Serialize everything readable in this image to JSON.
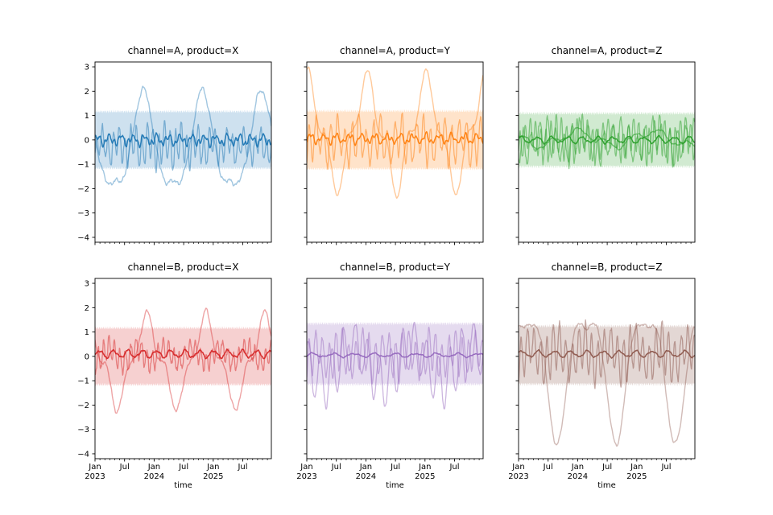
{
  "figure": {
    "background": "#ffffff"
  },
  "chart_data": {
    "type": "line",
    "layout": {
      "rows": 2,
      "cols": 3,
      "grid": false,
      "legend": "none"
    },
    "x_axis": {
      "label": "time",
      "start": "2023-01",
      "end": "2025-12",
      "total_months": 35.8,
      "major_ticks": [
        {
          "month": 0,
          "lines": [
            "Jan",
            "2023"
          ]
        },
        {
          "month": 6,
          "lines": [
            "Jul"
          ]
        },
        {
          "month": 12,
          "lines": [
            "Jan",
            "2024"
          ]
        },
        {
          "month": 18,
          "lines": [
            "Jul"
          ]
        },
        {
          "month": 24,
          "lines": [
            "Jan",
            "2025"
          ]
        },
        {
          "month": 30,
          "lines": [
            "Jul"
          ]
        }
      ],
      "minor_tick_every_months": 1
    },
    "y_axis": {
      "tick_labels": [
        "3",
        "2",
        "1",
        "0",
        "−1",
        "−2",
        "−3",
        "−4"
      ],
      "tick_values": [
        3,
        2,
        1,
        0,
        -1,
        -2,
        -3,
        -4
      ],
      "lim": [
        -4.2,
        3.2
      ]
    },
    "subplots": [
      {
        "title": "channel=A, product=X",
        "row": 0,
        "col": 0,
        "color": "#1f77b4",
        "band": {
          "center": 0,
          "half_width": 1.1,
          "edge_noise": 0.18,
          "edge_noise_freq": 2.6,
          "alpha": 0.22,
          "seed": 11
        },
        "series": [
          {
            "name": "seasonal-line",
            "offset": -0.3,
            "components": [
              {
                "amp": 1.9,
                "period": 12,
                "peak": 9.8
              },
              {
                "amp": 0.45,
                "period": 6,
                "peak": 9.8
              }
            ],
            "noise": 0.2,
            "noise_freq": 0.35,
            "alpha": 0.42,
            "width": 1.4,
            "seed": 1
          },
          {
            "name": "noisy-line",
            "offset": -0.25,
            "components": [
              {
                "amp": 0.6,
                "period": 1.15,
                "peak": 0.3
              },
              {
                "amp": 0.3,
                "period": 3.2,
                "peak": 1.4
              }
            ],
            "noise": 0.28,
            "noise_freq": 0.9,
            "alpha": 0.5,
            "width": 1.3,
            "seed": 2
          },
          {
            "name": "mean-line",
            "offset": 0.0,
            "components": [
              {
                "amp": 0.16,
                "period": 2.4,
                "peak": 0.5
              },
              {
                "amp": 0.1,
                "period": 0.95,
                "peak": 0.1
              }
            ],
            "noise": 0.1,
            "noise_freq": 0.7,
            "alpha": 0.95,
            "width": 1.5,
            "seed": 3
          }
        ]
      },
      {
        "title": "channel=A, product=Y",
        "row": 0,
        "col": 1,
        "color": "#ff7f0e",
        "band": {
          "center": 0,
          "half_width": 1.12,
          "edge_noise": 0.18,
          "edge_noise_freq": 2.6,
          "alpha": 0.22,
          "seed": 12
        },
        "series": [
          {
            "name": "seasonal-line",
            "offset": 0.3,
            "components": [
              {
                "amp": 2.0,
                "period": 12,
                "peak": 0.2
              },
              {
                "amp": 0.6,
                "period": 4,
                "peak": 0.3
              }
            ],
            "noise": 0.15,
            "noise_freq": 0.3,
            "alpha": 0.42,
            "width": 1.4,
            "seed": 4
          },
          {
            "name": "noisy-line",
            "offset": -0.05,
            "components": [
              {
                "amp": 0.75,
                "period": 1.45,
                "peak": 0.5
              },
              {
                "amp": 0.3,
                "period": 4.2,
                "peak": 2.1
              }
            ],
            "noise": 0.3,
            "noise_freq": 0.9,
            "alpha": 0.5,
            "width": 1.3,
            "seed": 5
          },
          {
            "name": "mean-line",
            "offset": 0.05,
            "components": [
              {
                "amp": 0.15,
                "period": 2.6,
                "peak": 0.8
              },
              {
                "amp": 0.08,
                "period": 1.0,
                "peak": 0.3
              }
            ],
            "noise": 0.08,
            "noise_freq": 0.6,
            "alpha": 0.95,
            "width": 1.5,
            "seed": 6
          }
        ]
      },
      {
        "title": "channel=A, product=Z",
        "row": 0,
        "col": 2,
        "color": "#2ca02c",
        "band": {
          "center": 0,
          "half_width": 1.02,
          "edge_noise": 0.2,
          "edge_noise_freq": 2.6,
          "alpha": 0.22,
          "seed": 13
        },
        "series": [
          {
            "name": "noisy-line",
            "offset": 0.0,
            "components": [
              {
                "amp": 0.68,
                "period": 1.05,
                "peak": 0.3
              },
              {
                "amp": 0.3,
                "period": 5.2,
                "peak": 2.6
              }
            ],
            "noise": 0.26,
            "noise_freq": 0.9,
            "alpha": 0.5,
            "width": 1.3,
            "seed": 7
          },
          {
            "name": "noisy-line-2",
            "offset": -0.05,
            "components": [
              {
                "amp": 0.6,
                "period": 1.65,
                "peak": 0.95
              },
              {
                "amp": 0.3,
                "period": 7.5,
                "peak": 5.2
              }
            ],
            "noise": 0.26,
            "noise_freq": 0.8,
            "alpha": 0.5,
            "width": 1.3,
            "seed": 8
          },
          {
            "name": "slow-line",
            "offset": 0.05,
            "components": [
              {
                "amp": 0.28,
                "period": 15,
                "peak": 27
              },
              {
                "amp": 0.15,
                "period": 5.5,
                "peak": 1.2
              }
            ],
            "noise": 0.07,
            "noise_freq": 0.4,
            "alpha": 0.6,
            "width": 1.4,
            "seed": 9
          },
          {
            "name": "mean-line",
            "offset": 0.0,
            "components": [
              {
                "amp": 0.12,
                "period": 3.1,
                "peak": 0.6
              }
            ],
            "noise": 0.07,
            "noise_freq": 0.5,
            "alpha": 0.95,
            "width": 1.5,
            "seed": 10
          }
        ]
      },
      {
        "title": "channel=B, product=X",
        "row": 1,
        "col": 0,
        "color": "#d62728",
        "band": {
          "center": 0,
          "half_width": 1.1,
          "edge_noise": 0.18,
          "edge_noise_freq": 2.6,
          "alpha": 0.22,
          "seed": 14
        },
        "series": [
          {
            "name": "seasonal-line",
            "offset": -0.2,
            "components": [
              {
                "amp": 1.6,
                "period": 12,
                "peak": 10.5
              },
              {
                "amp": 0.45,
                "period": 4,
                "peak": 2.5
              }
            ],
            "noise": 0.16,
            "noise_freq": 0.35,
            "alpha": 0.42,
            "width": 1.4,
            "seed": 15
          },
          {
            "name": "noisy-line",
            "offset": 0.05,
            "components": [
              {
                "amp": 0.5,
                "period": 1.1,
                "peak": 0.6
              },
              {
                "amp": 0.3,
                "period": 5.6,
                "peak": 2.9
              }
            ],
            "noise": 0.3,
            "noise_freq": 0.9,
            "alpha": 0.5,
            "width": 1.3,
            "seed": 16
          },
          {
            "name": "mean-line",
            "offset": 0.1,
            "components": [
              {
                "amp": 0.14,
                "period": 2.9,
                "peak": 0.9
              }
            ],
            "noise": 0.08,
            "noise_freq": 0.6,
            "alpha": 0.95,
            "width": 1.5,
            "seed": 17
          }
        ]
      },
      {
        "title": "channel=B, product=Y",
        "row": 1,
        "col": 1,
        "color": "#9467bd",
        "band": {
          "center": 0.1,
          "half_width": 1.18,
          "edge_noise": 0.2,
          "edge_noise_freq": 2.6,
          "alpha": 0.24,
          "seed": 18
        },
        "series": [
          {
            "name": "seasonal-line",
            "offset": -0.3,
            "components": [
              {
                "amp": 0.75,
                "period": 12,
                "peak": 9.4
              },
              {
                "amp": 1.0,
                "period": 2.4,
                "peak": 0.3
              }
            ],
            "noise": 0.2,
            "noise_freq": 0.5,
            "alpha": 0.48,
            "width": 1.3,
            "seed": 19
          },
          {
            "name": "noisy-line",
            "offset": 0.05,
            "components": [
              {
                "amp": 0.75,
                "period": 1.35,
                "peak": 0.5
              },
              {
                "amp": 0.3,
                "period": 4.6,
                "peak": 2.2
              }
            ],
            "noise": 0.26,
            "noise_freq": 0.9,
            "alpha": 0.45,
            "width": 1.3,
            "seed": 20
          },
          {
            "name": "mean-line",
            "offset": 0.05,
            "components": [
              {
                "amp": 0.07,
                "period": 4.2,
                "peak": 1.2
              }
            ],
            "noise": 0.05,
            "noise_freq": 0.4,
            "alpha": 0.95,
            "width": 1.5,
            "seed": 21
          }
        ]
      },
      {
        "title": "channel=B, product=Z",
        "row": 1,
        "col": 2,
        "color": "#8c564b",
        "band": {
          "center": 0.05,
          "half_width": 1.12,
          "edge_noise": 0.2,
          "edge_noise_freq": 2.6,
          "alpha": 0.24,
          "seed": 22
        },
        "series": [
          {
            "name": "seasonal-line",
            "offset": -0.4,
            "components": [
              {
                "amp": 2.4,
                "period": 12,
                "peak": 1.8
              },
              {
                "amp": 0.8,
                "period": 6,
                "peak": 4.8
              }
            ],
            "noise": 0.15,
            "noise_freq": 0.3,
            "alpha": 0.4,
            "width": 1.4,
            "seed": 23
          },
          {
            "name": "noisy-line",
            "offset": 0.1,
            "components": [
              {
                "amp": 0.85,
                "period": 1.3,
                "peak": 0.55
              },
              {
                "amp": 0.4,
                "period": 5.3,
                "peak": 2.5
              }
            ],
            "noise": 0.3,
            "noise_freq": 0.9,
            "alpha": 0.5,
            "width": 1.3,
            "seed": 24
          },
          {
            "name": "mean-line",
            "offset": 0.1,
            "components": [
              {
                "amp": 0.12,
                "period": 3.3,
                "peak": 0.7
              }
            ],
            "noise": 0.06,
            "noise_freq": 0.5,
            "alpha": 0.95,
            "width": 1.5,
            "seed": 25
          }
        ]
      }
    ]
  }
}
